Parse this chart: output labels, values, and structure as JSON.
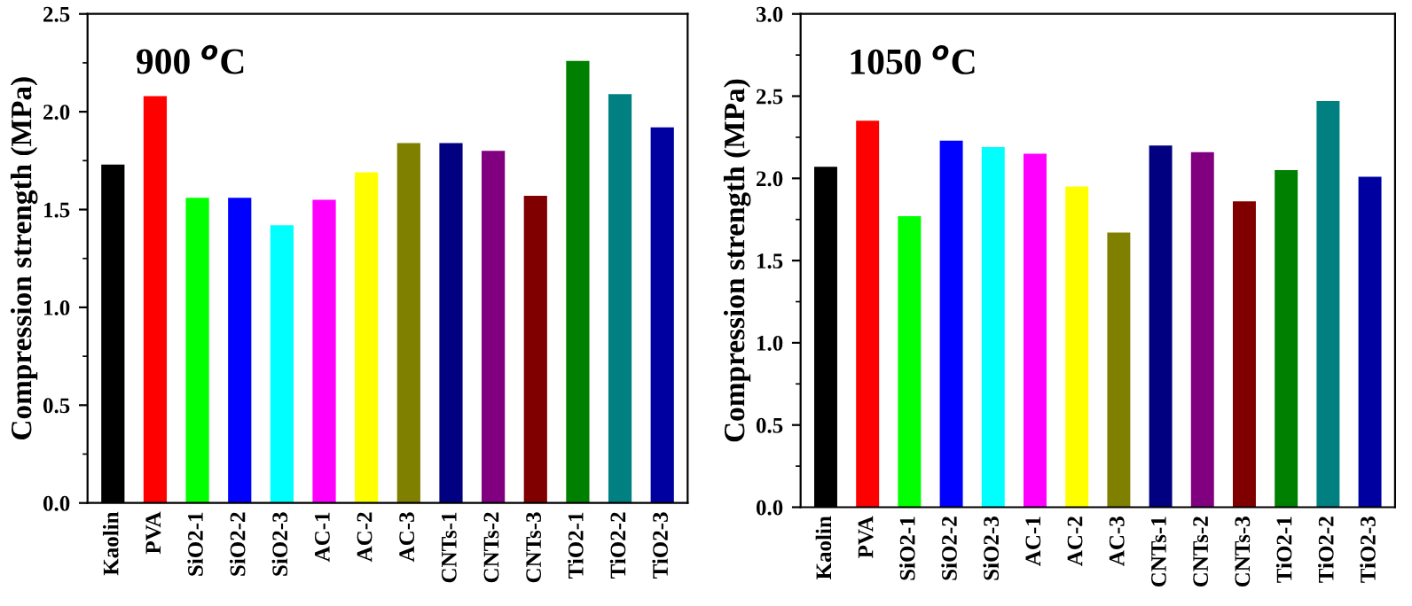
{
  "chart_data": [
    {
      "type": "bar",
      "annotations": [
        "900 $^{o}$C"
      ],
      "ylabel": "Compression strength (MPa)",
      "categories": [
        "Kaolin",
        "PVA",
        "SiO2-1",
        "SiO2-2",
        "SiO2-3",
        "AC-1",
        "AC-2",
        "AC-3",
        "CNTs-1",
        "CNTs-2",
        "CNTs-3",
        "TiO2-1",
        "TiO2-2",
        "TiO2-3"
      ],
      "values": [
        1.73,
        2.08,
        1.56,
        1.56,
        1.42,
        1.55,
        1.69,
        1.84,
        1.84,
        1.8,
        1.57,
        2.26,
        2.09,
        1.92
      ],
      "colors": [
        "#000000",
        "#ff0000",
        "#00ff00",
        "#0000ff",
        "#00ffff",
        "#ff00ff",
        "#ffff00",
        "#808000",
        "#000080",
        "#800080",
        "#800000",
        "#008000",
        "#008080",
        "#0000a0"
      ],
      "ylim": [
        0,
        2.5
      ],
      "yticks": [
        {
          "value": 0,
          "label": "0.0"
        },
        {
          "value": 0.5,
          "label": "0.5"
        },
        {
          "value": 1,
          "label": "1.0"
        },
        {
          "value": 1.5,
          "label": "1.5"
        },
        {
          "value": 2,
          "label": "2.0"
        },
        {
          "value": 2.5,
          "label": "2.5"
        }
      ],
      "grid": false,
      "legend": false
    },
    {
      "type": "bar",
      "annotations": [
        "1050 $^{o}$C"
      ],
      "ylabel": "Compression strength (MPa)",
      "categories": [
        "Kaolin",
        "PVA",
        "SiO2-1",
        "SiO2-2",
        "SiO2-3",
        "AC-1",
        "AC-2",
        "AC-3",
        "CNTs-1",
        "CNTs-2",
        "CNTs-3",
        "TiO2-1",
        "TiO2-2",
        "TiO2-3"
      ],
      "values": [
        2.07,
        2.35,
        1.77,
        2.23,
        2.19,
        2.15,
        1.95,
        1.67,
        2.2,
        2.16,
        1.86,
        2.05,
        2.47,
        2.01
      ],
      "colors": [
        "#000000",
        "#ff0000",
        "#00ff00",
        "#0000ff",
        "#00ffff",
        "#ff00ff",
        "#ffff00",
        "#808000",
        "#000080",
        "#800080",
        "#800000",
        "#008000",
        "#008080",
        "#0000a0"
      ],
      "ylim": [
        0,
        3
      ],
      "yticks": [
        {
          "value": 0,
          "label": "0.0"
        },
        {
          "value": 0.5,
          "label": "0.5"
        },
        {
          "value": 1,
          "label": "1.0"
        },
        {
          "value": 1.5,
          "label": "1.5"
        },
        {
          "value": 2,
          "label": "2.0"
        },
        {
          "value": 2.5,
          "label": "2.5"
        },
        {
          "value": 3,
          "label": "3.0"
        }
      ],
      "grid": false,
      "legend": false
    }
  ]
}
